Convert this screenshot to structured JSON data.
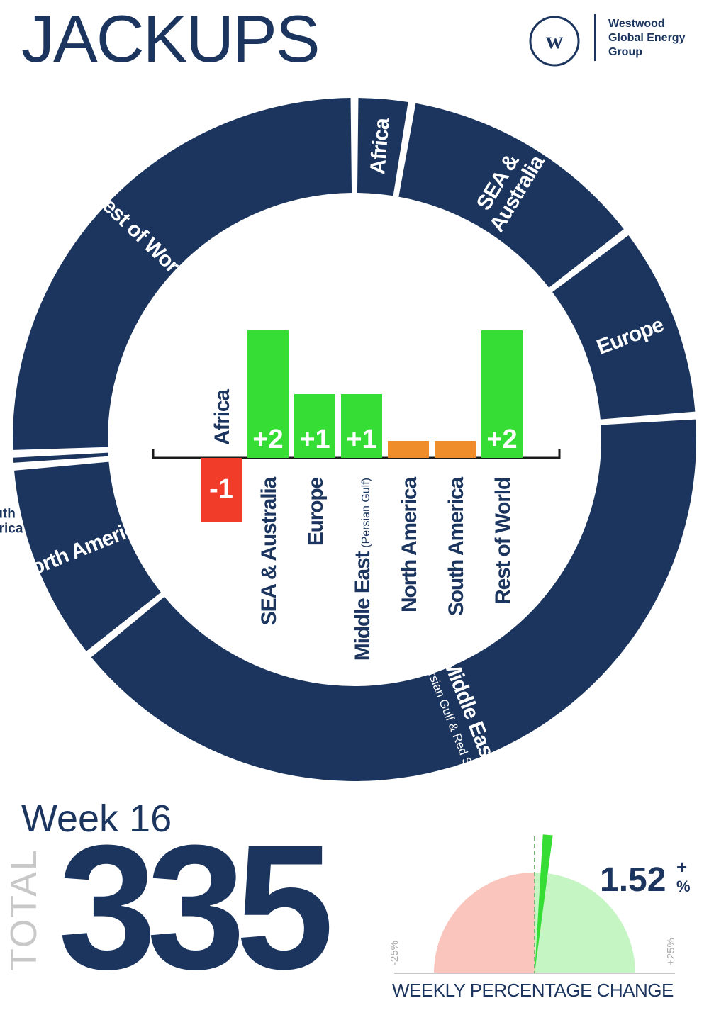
{
  "header": {
    "title": "JACKUPS",
    "logo_letter": "w",
    "logo_lines": [
      "Westwood",
      "Global Energy",
      "Group"
    ]
  },
  "colors": {
    "navy": "#1c355e",
    "positive": "#36dd34",
    "negative": "#f13c2a",
    "neutral": "#ee8d29",
    "gauge_negative_bg": "#f9c5bc",
    "gauge_positive_bg": "#c5f5c2"
  },
  "chart_data": [
    {
      "type": "pie",
      "variant": "donut",
      "segments": [
        {
          "name": "Africa",
          "label": "Africa",
          "value": 9
        },
        {
          "name": "SEA & Australia",
          "label": "SEA &|Australia",
          "value": 40
        },
        {
          "name": "Europe",
          "label": "Europe",
          "value": 31
        },
        {
          "name": "Middle East (Persian Gulf & Red Sea)",
          "label": "Middle East",
          "sublabel": "(Persian Gulf & Red Sea)",
          "value": 135
        },
        {
          "name": "North America",
          "label": "North America",
          "value": 32
        },
        {
          "name": "South America",
          "label": "South America",
          "value": 2
        },
        {
          "name": "Rest of World",
          "label": "Rest of World",
          "value": 86
        }
      ]
    },
    {
      "type": "bar",
      "categories": [
        "Africa",
        "SEA & Australia",
        "Europe",
        "Middle East (Persian Gulf)",
        "North America",
        "South America",
        "Rest of World"
      ],
      "category_labels": [
        {
          "main": "Africa",
          "sub": ""
        },
        {
          "main": "SEA & Australia",
          "sub": ""
        },
        {
          "main": "Europe",
          "sub": ""
        },
        {
          "main": "Middle East",
          "sub": "(Persian Gulf)"
        },
        {
          "main": "North America",
          "sub": ""
        },
        {
          "main": "South America",
          "sub": ""
        },
        {
          "main": "Rest of World",
          "sub": ""
        }
      ],
      "values": [
        -1,
        2,
        1,
        1,
        0,
        0,
        2
      ],
      "value_labels": [
        "-1",
        "+2",
        "+1",
        "+1",
        "",
        "",
        "+2"
      ]
    },
    {
      "type": "gauge",
      "value": 1.52,
      "range": [
        -25,
        25
      ],
      "min_label": "-25%",
      "max_label": "+25%",
      "display_value": "1.52",
      "sign": "+",
      "unit": "%",
      "caption": "WEEKLY PERCENTAGE CHANGE"
    }
  ],
  "summary": {
    "week": "Week 16",
    "total_label": "TOTAL",
    "total_value": "335"
  }
}
